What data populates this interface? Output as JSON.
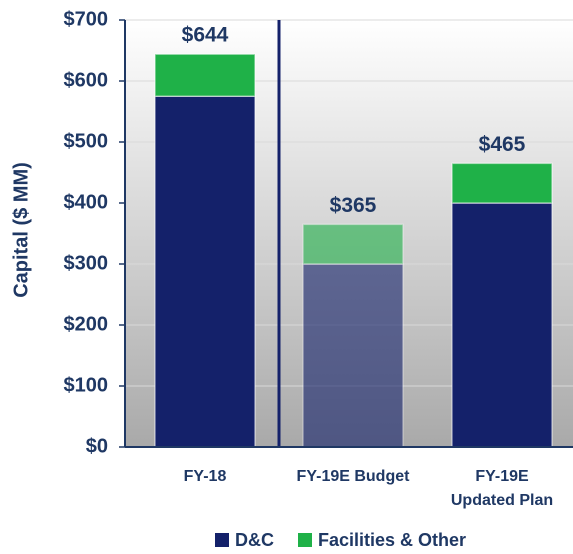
{
  "chart_data": {
    "type": "stacked_bar",
    "y_label": "Capital ($ MM)",
    "categories": [
      "FY-18",
      "FY-19E Budget",
      "FY-19E\nUpdated Plan"
    ],
    "series": [
      {
        "name": "D&C",
        "color": "#14216a",
        "values": [
          575,
          300,
          400
        ]
      },
      {
        "name": "Facilities & Other",
        "color": "#1fb148",
        "values": [
          69,
          65,
          65
        ]
      }
    ],
    "totals": [
      644,
      365,
      465
    ],
    "total_labels": [
      "$644",
      "$365",
      "$465"
    ],
    "bar_opacity": [
      1,
      0.6,
      1
    ],
    "ylim": [
      0,
      700
    ],
    "yticks": [
      {
        "value": 0,
        "label": "$0"
      },
      {
        "value": 100,
        "label": "$100"
      },
      {
        "value": 200,
        "label": "$200"
      },
      {
        "value": 300,
        "label": "$300"
      },
      {
        "value": 400,
        "label": "$400"
      },
      {
        "value": 500,
        "label": "$500"
      },
      {
        "value": 600,
        "label": "$600"
      },
      {
        "value": 700,
        "label": "$700"
      }
    ],
    "grid": true
  }
}
